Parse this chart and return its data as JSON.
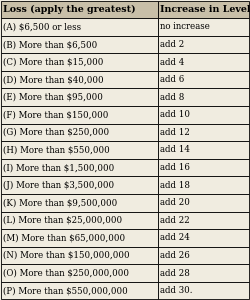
{
  "col1_header": "Loss (apply the greatest)",
  "col2_header": "Increase in Level",
  "rows": [
    [
      "(A) $6,500 or less",
      "no increase"
    ],
    [
      "(B) More than $6,500",
      "add 2"
    ],
    [
      "(C) More than $15,000",
      "add 4"
    ],
    [
      "(D) More than $40,000",
      "add 6"
    ],
    [
      "(E) More than $95,000",
      "add 8"
    ],
    [
      "(F) More than $150,000",
      "add 10"
    ],
    [
      "(G) More than $250,000",
      "add 12"
    ],
    [
      "(H) More than $550,000",
      "add 14"
    ],
    [
      "(I) More than $1,500,000",
      "add 16"
    ],
    [
      "(J) More than $3,500,000",
      "add 18"
    ],
    [
      "(K) More than $9,500,000",
      "add 20"
    ],
    [
      "(L) More than $25,000,000",
      "add 22"
    ],
    [
      "(M) More than $65,000,000",
      "add 24"
    ],
    [
      "(N) More than $150,000,000",
      "add 26"
    ],
    [
      "(O) More than $250,000,000",
      "add 28"
    ],
    [
      "(P) More than $550,000,000",
      "add 30."
    ]
  ],
  "bg_color": "#f0ece0",
  "header_bg": "#c8bfa8",
  "border_color": "#000000",
  "text_color": "#000000",
  "font_size": 6.2,
  "header_font_size": 6.8,
  "col_split": 0.635,
  "fig_width": 2.5,
  "fig_height": 3.0,
  "dpi": 100
}
